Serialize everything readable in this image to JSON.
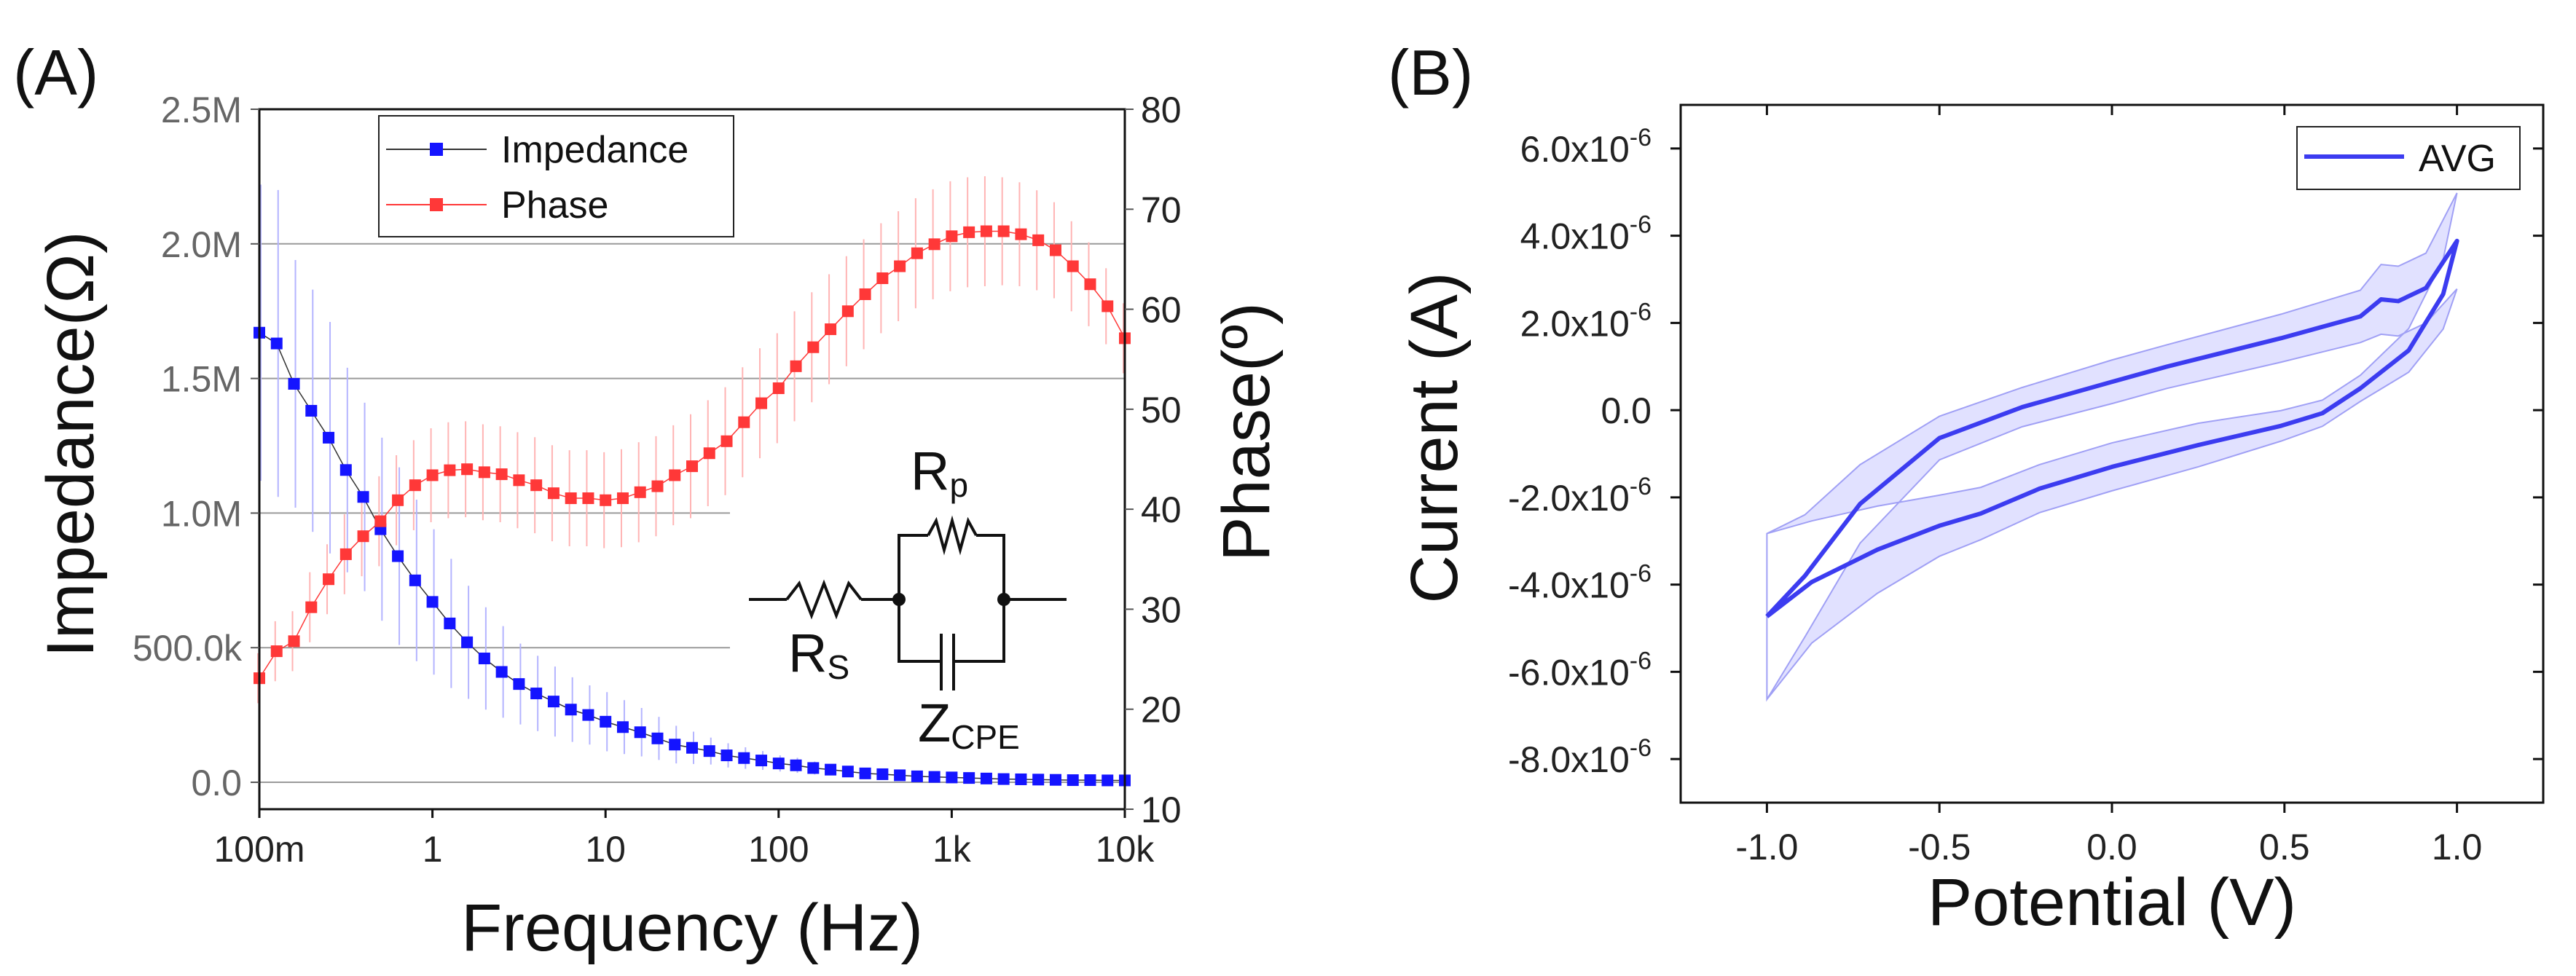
{
  "chart_data": [
    {
      "panel_label": "(A)",
      "type": "scatter",
      "title": "",
      "xlabel": "Frequency (Hz)",
      "ylabel": "Impedance(Ω)",
      "y2label": "Phase(º)",
      "xscale": "log",
      "xlim": [
        0.1,
        10000
      ],
      "ylim": [
        -100000,
        2500000
      ],
      "y2lim": [
        10,
        80
      ],
      "x_ticks": [
        0.1,
        1,
        10,
        100,
        1000,
        10000
      ],
      "x_tick_labels": [
        "100m",
        "1",
        "10",
        "100",
        "1k",
        "10k"
      ],
      "y_ticks": [
        0,
        500000,
        1000000,
        1500000,
        2000000,
        2500000
      ],
      "y_tick_labels": [
        "0.0",
        "500.0k",
        "1.0M",
        "1.5M",
        "2.0M",
        "2.5M"
      ],
      "y2_ticks": [
        10,
        20,
        30,
        40,
        50,
        60,
        70,
        80
      ],
      "y2_tick_labels": [
        "10",
        "20",
        "30",
        "40",
        "50",
        "60",
        "70",
        "80"
      ],
      "grid": "horizontal at y ticks",
      "legend": {
        "placement": "top-left",
        "entries": [
          "Impedance",
          "Phase"
        ]
      },
      "x_points_per_decade": 10,
      "series": [
        {
          "name": "Impedance",
          "axis": "left",
          "color": "#1414ff",
          "line_color": "#333333",
          "error_color": "#b4b4ff",
          "values_M": [
            1.67,
            1.63,
            1.48,
            1.38,
            1.28,
            1.16,
            1.06,
            0.94,
            0.84,
            0.75,
            0.67,
            0.59,
            0.52,
            0.46,
            0.41,
            0.365,
            0.33,
            0.3,
            0.27,
            0.25,
            0.225,
            0.205,
            0.186,
            0.163,
            0.14,
            0.128,
            0.116,
            0.1,
            0.09,
            0.081,
            0.07,
            0.063,
            0.053,
            0.047,
            0.04,
            0.033,
            0.03,
            0.026,
            0.022,
            0.02,
            0.018,
            0.016,
            0.014,
            0.012,
            0.011,
            0.01,
            0.009,
            0.008,
            0.008,
            0.007,
            0.007
          ],
          "errors_M": [
            0.55,
            0.57,
            0.46,
            0.45,
            0.43,
            0.38,
            0.35,
            0.34,
            0.33,
            0.3,
            0.27,
            0.24,
            0.21,
            0.19,
            0.17,
            0.15,
            0.14,
            0.13,
            0.12,
            0.11,
            0.11,
            0.1,
            0.09,
            0.08,
            0.07,
            0.06,
            0.05,
            0.045,
            0.04,
            0.035,
            0.03,
            0.028,
            0.024,
            0.02,
            0.018,
            0.015,
            0.013,
            0.012,
            0.01,
            0.009,
            0.008,
            0.007,
            0.006,
            0.005,
            0.005,
            0.004,
            0.004,
            0.003,
            0.003,
            0.003,
            0.003
          ]
        },
        {
          "name": "Phase",
          "axis": "right",
          "color": "#ff3838",
          "line_color": "#ff3838",
          "error_color": "#ffb4b4",
          "values": [
            23.1,
            25.8,
            26.8,
            30.2,
            33.0,
            35.5,
            37.3,
            38.8,
            40.9,
            42.4,
            43.4,
            43.9,
            44.0,
            43.7,
            43.5,
            42.9,
            42.4,
            41.6,
            41.1,
            41.1,
            40.9,
            41.1,
            41.7,
            42.3,
            43.4,
            44.3,
            45.6,
            46.8,
            48.7,
            50.6,
            52.1,
            54.3,
            56.2,
            58.0,
            59.8,
            61.5,
            63.1,
            64.3,
            65.6,
            66.5,
            67.3,
            67.7,
            67.8,
            67.8,
            67.5,
            66.9,
            65.9,
            64.3,
            62.5,
            60.3,
            57.1
          ],
          "errors": [
            2.5,
            3,
            3,
            3.5,
            3.5,
            4,
            4,
            4.5,
            4.5,
            4.5,
            4.7,
            4.8,
            4.8,
            4.8,
            4.8,
            4.8,
            4.8,
            4.8,
            4.8,
            4.8,
            4.8,
            4.9,
            5,
            5,
            5,
            5.2,
            5.3,
            5.4,
            5.5,
            5.5,
            5.5,
            5.5,
            5.5,
            5.5,
            5.5,
            5.5,
            5.5,
            5.5,
            5.5,
            5.5,
            5.5,
            5.5,
            5.5,
            5.4,
            5.2,
            5,
            4.8,
            4.5,
            4.2,
            3.8,
            3.5
          ]
        }
      ],
      "inset_circuit": {
        "rs": {
          "main": "R",
          "sub": "S"
        },
        "rp": {
          "main": "R",
          "sub": "p"
        },
        "zcpe": {
          "main": "Z",
          "sub": "CPE"
        }
      }
    },
    {
      "panel_label": "(B)",
      "type": "line",
      "title": "",
      "xlabel": "Potential (V)",
      "ylabel": "Current (A)",
      "xlim": [
        -1.25,
        1.25
      ],
      "ylim_e6": [
        -9,
        7
      ],
      "x_ticks": [
        -1.0,
        -0.5,
        0.0,
        0.5,
        1.0
      ],
      "x_tick_labels": [
        "-1.0",
        "-0.5",
        "0.0",
        "0.5",
        "1.0"
      ],
      "y_ticks_e6": [
        6,
        4,
        2,
        0,
        -2,
        -4,
        -6,
        -8
      ],
      "y_tick_labels": [
        {
          "m": "6.0x10",
          "e": "-6"
        },
        {
          "m": "4.0x10",
          "e": "-6"
        },
        {
          "m": "2.0x10",
          "e": "-6"
        },
        {
          "m": "0.0",
          "e": ""
        },
        {
          "m": "-2.0x10",
          "e": "-6"
        },
        {
          "m": "-4.0x10",
          "e": "-6"
        },
        {
          "m": "-6.0x10",
          "e": "-6"
        },
        {
          "m": "-8.0x10",
          "e": "-6"
        }
      ],
      "legend": {
        "placement": "top-right",
        "entries": [
          "AVG"
        ]
      },
      "series": [
        {
          "name": "AVG",
          "color": "#3c3cf0",
          "band_color": "#c8c8ff",
          "x": [
            -1.0,
            -0.89,
            -0.73,
            -0.5,
            -0.26,
            0.0,
            0.16,
            0.49,
            0.72,
            0.78,
            0.83,
            0.91,
            1.0,
            0.96,
            0.86,
            0.72,
            0.61,
            0.49,
            0.25,
            0.0,
            -0.21,
            -0.38,
            -0.5,
            -0.68,
            -0.87,
            -1.0
          ],
          "y_e6": [
            -4.73,
            -3.8,
            -2.15,
            -0.64,
            0.07,
            0.65,
            1.0,
            1.65,
            2.15,
            2.54,
            2.5,
            2.8,
            3.88,
            2.66,
            1.37,
            0.5,
            -0.07,
            -0.36,
            -0.8,
            -1.3,
            -1.8,
            -2.37,
            -2.65,
            -3.2,
            -3.94,
            -4.73
          ],
          "band_e6": [
            1.9,
            1.4,
            0.9,
            0.5,
            0.45,
            0.5,
            0.5,
            0.55,
            0.6,
            0.8,
            0.8,
            0.8,
            1.1,
            0.8,
            0.5,
            0.3,
            0.3,
            0.35,
            0.5,
            0.55,
            0.55,
            0.6,
            0.7,
            1.0,
            1.4,
            1.9
          ]
        }
      ]
    }
  ]
}
